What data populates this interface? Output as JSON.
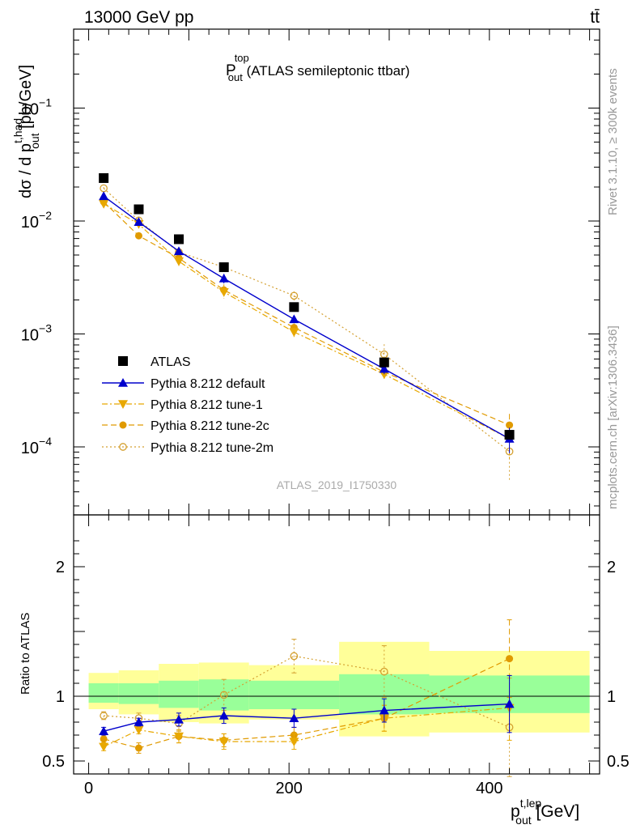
{
  "header": {
    "left": "13000 GeV pp",
    "right": "tt̄"
  },
  "side_labels": {
    "rivet": "Rivet 3.1.10, ≥ 300k events",
    "mcplots": "mcplots.cern.ch [arXiv:1306.3436]"
  },
  "chart_data": {
    "type": "scatter",
    "title": "P_out^top (ATLAS semileptonic ttbar)",
    "title_main": "P",
    "title_sup": "top",
    "title_sub": "out",
    "title_rest": " (ATLAS semileptonic ttbar)",
    "analysis_id": "ATLAS_2019_I1750330",
    "xlabel": {
      "main": "p",
      "sup": "t,lep",
      "sub": "out",
      "unit": " [GeV]"
    },
    "ylabel_top": {
      "prefix": "dσ / d p",
      "sup": "t,had",
      "sub": "out",
      "unit": " [pb/GeV]"
    },
    "ylabel_ratio": "Ratio to ATLAS",
    "xlim": [
      -15,
      510
    ],
    "ylim_top": [
      2.5e-05,
      0.5
    ],
    "ylim_ratio": [
      0.4,
      2.4
    ],
    "x_ticks": [
      0,
      200,
      400
    ],
    "x_tick_labels": [
      "0",
      "200",
      "400"
    ],
    "y_ticks_top": [
      0.1,
      0.01,
      0.001,
      0.0001
    ],
    "y_tick_labels_top": [
      {
        "base": "10",
        "exp": "−1"
      },
      {
        "base": "10",
        "exp": "−2"
      },
      {
        "base": "10",
        "exp": "−3"
      },
      {
        "base": "10",
        "exp": "−4"
      }
    ],
    "y_ticks_ratio": [
      0.5,
      1,
      2
    ],
    "y_tick_labels_ratio": [
      "0.5",
      "1",
      "2"
    ],
    "bins": [
      [
        0,
        30
      ],
      [
        30,
        70
      ],
      [
        70,
        110
      ],
      [
        110,
        160
      ],
      [
        160,
        250
      ],
      [
        250,
        340
      ],
      [
        340,
        500
      ]
    ],
    "x": [
      15,
      50,
      90,
      135,
      205,
      295,
      420
    ],
    "band_inner": [
      [
        0.95,
        1.1
      ],
      [
        0.94,
        1.1
      ],
      [
        0.91,
        1.12
      ],
      [
        0.89,
        1.13
      ],
      [
        0.9,
        1.12
      ],
      [
        0.86,
        1.17
      ],
      [
        0.87,
        1.16
      ]
    ],
    "band_outer": [
      [
        0.9,
        1.18
      ],
      [
        0.86,
        1.2
      ],
      [
        0.8,
        1.25
      ],
      [
        0.79,
        1.26
      ],
      [
        0.82,
        1.24
      ],
      [
        0.69,
        1.42
      ],
      [
        0.72,
        1.35
      ]
    ],
    "legend": [
      "ATLAS",
      "Pythia 8.212 default",
      "Pythia 8.212 tune-1",
      "Pythia 8.212 tune-2c",
      "Pythia 8.212 tune-2m"
    ],
    "series": [
      {
        "name": "ATLAS",
        "color": "#000000",
        "marker": "square",
        "line": "none",
        "values": [
          0.024,
          0.0127,
          0.0069,
          0.0039,
          0.00173,
          0.00056,
          0.000128
        ],
        "errors": [
          0,
          0,
          0,
          0,
          0,
          0,
          0
        ],
        "ratio": [
          1,
          1,
          1,
          1,
          1,
          1,
          1
        ],
        "ratio_err": [
          0,
          0,
          0,
          0,
          0,
          0,
          0
        ]
      },
      {
        "name": "Pythia 8.212 default",
        "color": "#0000cc",
        "marker": "triangle-up",
        "line": "solid",
        "values": [
          0.0166,
          0.0098,
          0.0054,
          0.0031,
          0.00135,
          0.00049,
          0.000118
        ],
        "errors": [
          0.0005,
          0.0004,
          0.0004,
          0.0003,
          0.0001,
          5e-05,
          3e-05
        ],
        "ratio": [
          0.73,
          0.8,
          0.82,
          0.85,
          0.83,
          0.89,
          0.94
        ],
        "ratio_err": [
          0.03,
          0.03,
          0.05,
          0.06,
          0.07,
          0.09,
          0.22
        ]
      },
      {
        "name": "Pythia 8.212 tune-1",
        "color": "#e8a800",
        "marker": "triangle-down",
        "line": "dashdot",
        "values": [
          0.0142,
          0.0094,
          0.0044,
          0.00235,
          0.00104,
          0.00044,
          0.000118
        ],
        "errors": [
          0.0005,
          0.0004,
          0.0004,
          0.0003,
          0.0001,
          5e-05,
          4e-05
        ],
        "ratio": [
          0.61,
          0.74,
          0.69,
          0.65,
          0.65,
          0.83,
          0.91
        ],
        "ratio_err": [
          0.03,
          0.03,
          0.05,
          0.06,
          0.06,
          0.1,
          0.25
        ]
      },
      {
        "name": "Pythia 8.212 tune-2c",
        "color": "#e09a00",
        "marker": "circle",
        "line": "dashed",
        "values": [
          0.0148,
          0.0074,
          0.0047,
          0.00245,
          0.00114,
          0.00046,
          0.000156
        ],
        "errors": [
          0.0005,
          0.0004,
          0.0004,
          0.0003,
          0.0001,
          5e-05,
          4e-05
        ],
        "ratio": [
          0.67,
          0.6,
          0.69,
          0.66,
          0.7,
          0.83,
          1.29
        ],
        "ratio_err": [
          0.03,
          0.04,
          0.05,
          0.05,
          0.06,
          0.1,
          0.3
        ]
      },
      {
        "name": "Pythia 8.212 tune-2m",
        "color": "#d4a030",
        "marker": "circle-open",
        "line": "dotted",
        "values": [
          0.0195,
          0.0101,
          0.0053,
          0.0039,
          0.00218,
          0.00066,
          9.1e-05
        ],
        "errors": [
          0.0005,
          0.0004,
          0.0004,
          0.0003,
          0.0002,
          0.00015,
          4e-05
        ],
        "ratio": [
          0.85,
          0.83,
          0.79,
          1.01,
          1.31,
          1.19,
          0.76
        ],
        "ratio_err": [
          0.03,
          0.04,
          0.06,
          0.12,
          0.13,
          0.2,
          0.38
        ]
      }
    ]
  }
}
